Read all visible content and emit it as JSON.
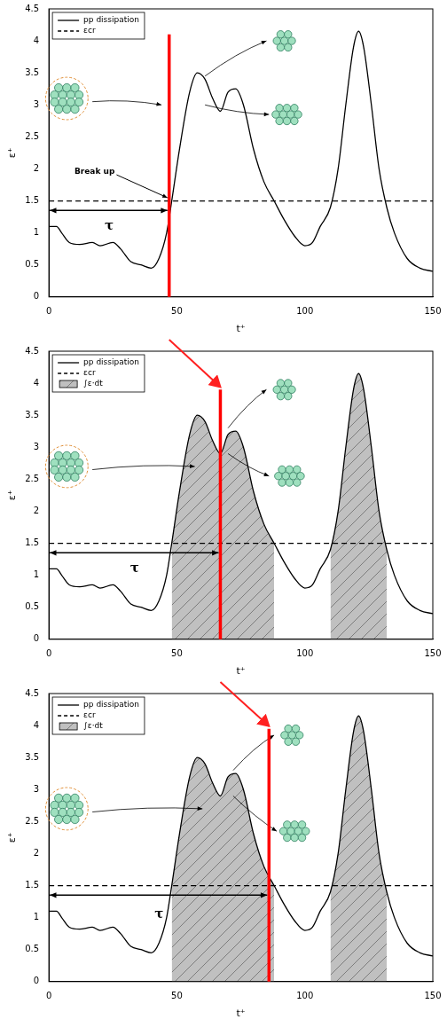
{
  "chart_data": [
    {
      "type": "line",
      "x_label": "t⁺",
      "y_label": "ε⁺",
      "xlim": [
        0,
        150
      ],
      "xticks": [
        0,
        50,
        100,
        150
      ],
      "ylim": [
        0,
        4.5
      ],
      "yticks": [
        0,
        0.5,
        1,
        1.5,
        2,
        2.5,
        3,
        3.5,
        4,
        4.5
      ],
      "grid": false,
      "legend": "upper left",
      "series": [
        {
          "name": "pp dissipation",
          "color": "#000000",
          "line_style": "solid",
          "x": [
            0,
            3,
            5,
            8,
            12,
            17,
            20,
            25,
            28,
            32,
            36,
            40,
            43,
            46,
            48,
            51,
            55,
            58,
            61,
            64,
            67,
            70,
            73,
            76,
            80,
            84,
            88,
            92,
            96,
            100,
            103,
            106,
            110,
            113,
            116,
            119,
            121,
            123,
            126,
            129,
            132,
            135,
            140,
            145,
            150
          ],
          "values": [
            1.1,
            1.1,
            1.0,
            0.85,
            0.82,
            0.85,
            0.8,
            0.85,
            0.75,
            0.55,
            0.5,
            0.45,
            0.6,
            1.0,
            1.5,
            2.3,
            3.2,
            3.5,
            3.4,
            3.1,
            2.9,
            3.2,
            3.25,
            3.0,
            2.3,
            1.8,
            1.5,
            1.2,
            0.95,
            0.8,
            0.85,
            1.1,
            1.4,
            2.0,
            3.0,
            3.9,
            4.15,
            3.9,
            3.0,
            2.0,
            1.4,
            1.0,
            0.6,
            0.45,
            0.4
          ]
        },
        {
          "name": "εcr",
          "color": "#000000",
          "line_style": "dashed",
          "x": [
            0,
            150
          ],
          "values": [
            1.5,
            1.5
          ]
        }
      ],
      "marker_line": {
        "x": 47,
        "y_top": 4.1,
        "color": "#ff0000"
      },
      "interval": {
        "label": "τ",
        "from": 0,
        "to": 47,
        "y": 1.35,
        "label_y": 1.1
      },
      "annotations": [
        {
          "text": "Break up",
          "x": 10,
          "y": 1.95,
          "arrow_to": [
            47,
            1.55
          ]
        }
      ]
    },
    {
      "type": "line",
      "x_label": "t⁺",
      "y_label": "ε⁺",
      "xlim": [
        0,
        150
      ],
      "xticks": [
        0,
        50,
        100,
        150
      ],
      "ylim": [
        0,
        4.5
      ],
      "yticks": [
        0,
        0.5,
        1,
        1.5,
        2,
        2.5,
        3,
        3.5,
        4,
        4.5
      ],
      "grid": false,
      "legend": "upper left",
      "series": [
        {
          "name": "pp dissipation",
          "color": "#000000",
          "line_style": "solid",
          "x": [
            0,
            3,
            5,
            8,
            12,
            17,
            20,
            25,
            28,
            32,
            36,
            40,
            43,
            46,
            48,
            51,
            55,
            58,
            61,
            64,
            67,
            70,
            73,
            76,
            80,
            84,
            88,
            92,
            96,
            100,
            103,
            106,
            110,
            113,
            116,
            119,
            121,
            123,
            126,
            129,
            132,
            135,
            140,
            145,
            150
          ],
          "values": [
            1.1,
            1.1,
            1.0,
            0.85,
            0.82,
            0.85,
            0.8,
            0.85,
            0.75,
            0.55,
            0.5,
            0.45,
            0.6,
            1.0,
            1.5,
            2.3,
            3.2,
            3.5,
            3.4,
            3.1,
            2.9,
            3.2,
            3.25,
            3.0,
            2.3,
            1.8,
            1.5,
            1.2,
            0.95,
            0.8,
            0.85,
            1.1,
            1.4,
            2.0,
            3.0,
            3.9,
            4.15,
            3.9,
            3.0,
            2.0,
            1.4,
            1.0,
            0.6,
            0.45,
            0.4
          ]
        },
        {
          "name": "εcr",
          "color": "#000000",
          "line_style": "dashed",
          "x": [
            0,
            150
          ],
          "values": [
            1.5,
            1.5
          ]
        },
        {
          "name": "∫ε·dt",
          "type": "area",
          "color": "#c0c0c0",
          "x": [
            48,
            51,
            55,
            58,
            61,
            64,
            67,
            70,
            73,
            76,
            80,
            84,
            88,
            100,
            110,
            113,
            116,
            119,
            121,
            123,
            126,
            129,
            132
          ],
          "values": [
            1.5,
            2.3,
            3.2,
            3.5,
            3.4,
            3.1,
            2.9,
            3.2,
            3.25,
            3.0,
            2.3,
            1.8,
            1.5,
            null,
            1.4,
            2.0,
            3.0,
            3.9,
            4.15,
            3.9,
            3.0,
            2.0,
            1.4
          ]
        }
      ],
      "marker_line": {
        "x": 67,
        "y_top": 3.9,
        "color": "#ff0000"
      },
      "interval": {
        "label": "τ",
        "from": 0,
        "to": 67,
        "y": 1.35,
        "label_y": 1.1
      },
      "annotations": []
    },
    {
      "type": "line",
      "x_label": "t⁺",
      "y_label": "ε⁺",
      "xlim": [
        0,
        150
      ],
      "xticks": [
        0,
        50,
        100,
        150
      ],
      "ylim": [
        0,
        4.5
      ],
      "yticks": [
        0,
        0.5,
        1,
        1.5,
        2,
        2.5,
        3,
        3.5,
        4,
        4.5
      ],
      "grid": false,
      "legend": "upper left",
      "series": [
        {
          "name": "pp dissipation",
          "color": "#000000",
          "line_style": "solid",
          "x": [
            0,
            3,
            5,
            8,
            12,
            17,
            20,
            25,
            28,
            32,
            36,
            40,
            43,
            46,
            48,
            51,
            55,
            58,
            61,
            64,
            67,
            70,
            73,
            76,
            80,
            84,
            88,
            92,
            96,
            100,
            103,
            106,
            110,
            113,
            116,
            119,
            121,
            123,
            126,
            129,
            132,
            135,
            140,
            145,
            150
          ],
          "values": [
            1.1,
            1.1,
            1.0,
            0.85,
            0.82,
            0.85,
            0.8,
            0.85,
            0.75,
            0.55,
            0.5,
            0.45,
            0.6,
            1.0,
            1.5,
            2.3,
            3.2,
            3.5,
            3.4,
            3.1,
            2.9,
            3.2,
            3.25,
            3.0,
            2.3,
            1.8,
            1.5,
            1.2,
            0.95,
            0.8,
            0.85,
            1.1,
            1.4,
            2.0,
            3.0,
            3.9,
            4.15,
            3.9,
            3.0,
            2.0,
            1.4,
            1.0,
            0.6,
            0.45,
            0.4
          ]
        },
        {
          "name": "εcr",
          "color": "#000000",
          "line_style": "dashed",
          "x": [
            0,
            150
          ],
          "values": [
            1.5,
            1.5
          ]
        },
        {
          "name": "∫ε·dt",
          "type": "area",
          "color": "#c0c0c0",
          "x": [
            48,
            51,
            55,
            58,
            61,
            64,
            67,
            70,
            73,
            76,
            80,
            84,
            88,
            100,
            110,
            113,
            116,
            119,
            121,
            123,
            126,
            129,
            132
          ],
          "values": [
            1.5,
            2.3,
            3.2,
            3.5,
            3.4,
            3.1,
            2.9,
            3.2,
            3.25,
            3.0,
            2.3,
            1.8,
            1.5,
            null,
            1.4,
            2.0,
            3.0,
            3.9,
            4.15,
            3.9,
            3.0,
            2.0,
            1.4
          ]
        }
      ],
      "marker_line": {
        "x": 86,
        "y_top": 3.95,
        "color": "#ff0000"
      },
      "interval": {
        "label": "τ",
        "from": 0,
        "to": 86,
        "y": 1.35,
        "label_y": 1.05
      },
      "annotations": []
    }
  ]
}
